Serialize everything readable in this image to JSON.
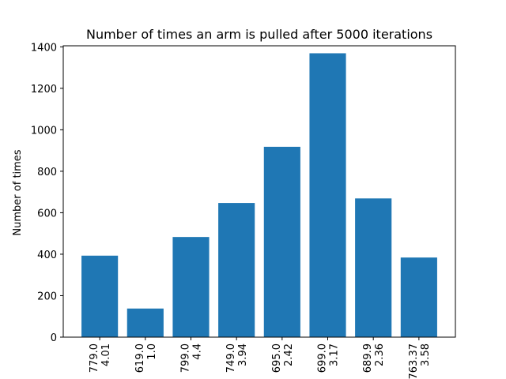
{
  "chart_data": {
    "type": "bar",
    "title": "Number of times an arm is pulled after 5000 iterations",
    "xlabel": "",
    "ylabel": "Number of times",
    "ylim": [
      0,
      1400
    ],
    "yticks": [
      0,
      200,
      400,
      600,
      800,
      1000,
      1200,
      1400
    ],
    "categories": [
      [
        "779.0",
        "4.01"
      ],
      [
        "619.0",
        "1.0"
      ],
      [
        "799.0",
        "4.4"
      ],
      [
        "749.0",
        "3.94"
      ],
      [
        "695.0",
        "2.42"
      ],
      [
        "699.0",
        "3.17"
      ],
      [
        "689.9",
        "2.36"
      ],
      [
        "763.37",
        "3.58"
      ]
    ],
    "values": [
      393,
      138,
      483,
      647,
      918,
      1369,
      669,
      384
    ],
    "bar_color": "#1f77b4",
    "grid": false,
    "legend": "none"
  }
}
